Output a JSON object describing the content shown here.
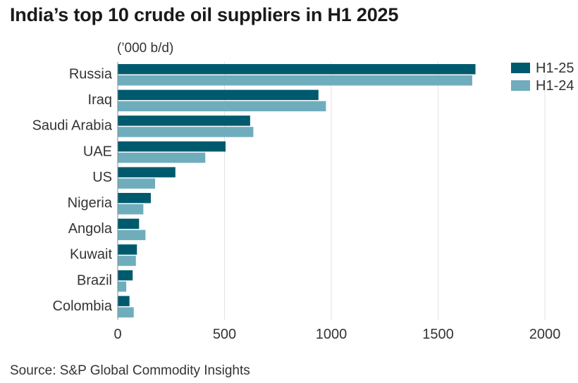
{
  "chart_data": {
    "type": "bar",
    "orientation": "horizontal",
    "title": "India’s top 10 crude oil suppliers in H1 2025",
    "unit_label": "(’000 b/d)",
    "source": "Source: S&P Global Commodity Insights",
    "categories": [
      "Russia",
      "Iraq",
      "Saudi Arabia",
      "UAE",
      "US",
      "Nigeria",
      "Angola",
      "Kuwait",
      "Brazil",
      "Colombia"
    ],
    "series": [
      {
        "name": "H1-25",
        "color": "#005a6e",
        "values": [
          1675,
          940,
          620,
          505,
          270,
          155,
          100,
          90,
          70,
          55
        ]
      },
      {
        "name": "H1-24",
        "color": "#6fadbd",
        "values": [
          1660,
          975,
          635,
          410,
          175,
          120,
          130,
          85,
          40,
          75
        ]
      }
    ],
    "xlim": [
      0,
      2000
    ],
    "xticks": [
      "0",
      "500",
      "1000",
      "1500",
      "2000"
    ],
    "grid": "vertical",
    "legend": "top-right"
  }
}
